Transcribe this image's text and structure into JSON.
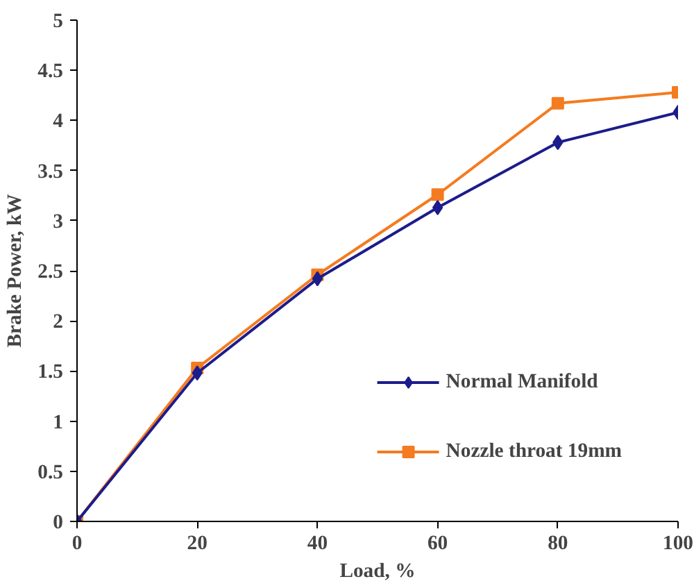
{
  "chart_data": {
    "type": "line",
    "xlabel": "Load, %",
    "ylabel": "Brake Power, kW",
    "x": [
      0,
      20,
      40,
      60,
      80,
      100
    ],
    "series": [
      {
        "name": "Normal Manifold",
        "color": "#1c1c8c",
        "marker": "diamond",
        "values": [
          0,
          1.48,
          2.42,
          3.13,
          3.78,
          4.08
        ]
      },
      {
        "name": "Nozzle throat 19mm",
        "color": "#f47b20",
        "marker": "square",
        "values": [
          0,
          1.53,
          2.46,
          3.26,
          4.17,
          4.28
        ]
      }
    ],
    "xlim": [
      0,
      100
    ],
    "xticks": [
      0,
      20,
      40,
      60,
      80,
      100
    ],
    "ylim": [
      0,
      5
    ],
    "yticks": [
      0,
      0.5,
      1,
      1.5,
      2,
      2.5,
      3,
      3.5,
      4,
      4.5,
      5
    ],
    "grid": false,
    "legend": "bottom right",
    "line_style": "solid"
  }
}
